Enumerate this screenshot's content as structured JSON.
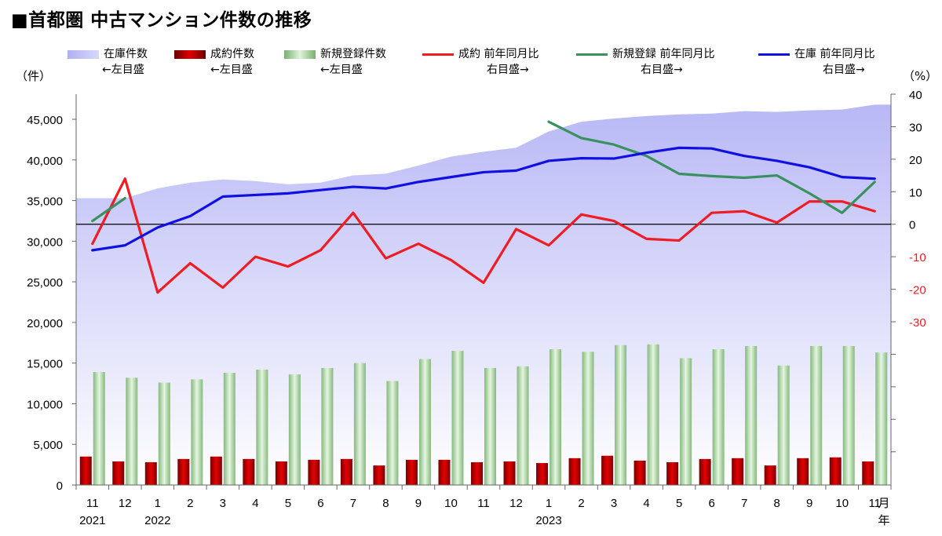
{
  "title": "■首都圏 中古マンション件数の推移",
  "units": {
    "left": "（件）",
    "right": "（%）"
  },
  "legend": [
    {
      "label": "在庫件数",
      "sub": "←左目盛",
      "swatch": "area"
    },
    {
      "label": "成約件数",
      "sub": "←左目盛",
      "swatch": "red-bar"
    },
    {
      "label": "新規登録件数",
      "sub": "←左目盛",
      "swatch": "green-bar"
    },
    {
      "label": "成約 前年同月比",
      "sub": "右目盛→",
      "swatch": "red-line"
    },
    {
      "label": "新規登録 前年同月比",
      "sub": "右目盛→",
      "swatch": "green-line"
    },
    {
      "label": "在庫 前年同月比",
      "sub": "右目盛→",
      "swatch": "blue-line"
    }
  ],
  "colors": {
    "inventory_area": "#c8c8f8",
    "contract_bar": "#cc0000",
    "new_listing_bar": "#a8d8a0",
    "contract_line": "#ee1c24",
    "new_listing_line": "#3a9160",
    "inventory_line": "#1010e0",
    "right_neg_ticks": "#ee1c24"
  },
  "chart_data": {
    "type": "bar",
    "categories": [
      "11",
      "12",
      "1",
      "2",
      "3",
      "4",
      "5",
      "6",
      "7",
      "8",
      "9",
      "10",
      "11",
      "12",
      "1",
      "2",
      "3",
      "4",
      "5",
      "6",
      "7",
      "8",
      "9",
      "10",
      "11"
    ],
    "year_labels": [
      {
        "index": 0,
        "label": "2021"
      },
      {
        "index": 2,
        "label": "2022"
      },
      {
        "index": 14,
        "label": "2023"
      }
    ],
    "month_suffix": "月",
    "year_suffix": "年",
    "y_left": {
      "lim": [
        0,
        45000
      ],
      "ticks": [
        "0",
        "5,000",
        "10,000",
        "15,000",
        "20,000",
        "25,000",
        "30,000",
        "35,000",
        "40,000",
        "45,000"
      ],
      "tick_values": [
        0,
        5000,
        10000,
        15000,
        20000,
        25000,
        30000,
        35000,
        40000,
        45000
      ]
    },
    "y_right": {
      "lim": [
        -30,
        40
      ],
      "ticks": [
        "40",
        "30",
        "20",
        "10",
        "0",
        "-10",
        "-20",
        "-30"
      ],
      "tick_values": [
        40,
        30,
        20,
        10,
        0,
        -10,
        -20,
        -30
      ]
    },
    "series": [
      {
        "name": "在庫件数",
        "kind": "area",
        "axis": "left",
        "values": [
          35300,
          35300,
          36500,
          37200,
          37600,
          37400,
          37000,
          37200,
          38100,
          38300,
          39300,
          40400,
          41000,
          41500,
          43500,
          44700,
          45100,
          45400,
          45600,
          45700,
          46000,
          45900,
          46100,
          46200,
          46800
        ]
      },
      {
        "name": "成約件数",
        "kind": "bar",
        "axis": "left",
        "values": [
          3500,
          2900,
          2800,
          3200,
          3500,
          3200,
          2900,
          3100,
          3200,
          2400,
          3100,
          3100,
          2800,
          2900,
          2700,
          3300,
          3600,
          3000,
          2800,
          3200,
          3300,
          2400,
          3300,
          3400,
          2900
        ]
      },
      {
        "name": "新規登録件数",
        "kind": "bar",
        "axis": "left",
        "values": [
          13900,
          13200,
          12600,
          13000,
          13800,
          14200,
          13600,
          14400,
          15000,
          12800,
          15500,
          16500,
          14400,
          14600,
          16700,
          16400,
          17200,
          17300,
          15600,
          16700,
          17100,
          14700,
          17100,
          17100,
          16300
        ]
      },
      {
        "name": "成約 前年同月比",
        "kind": "line",
        "axis": "right",
        "values": [
          -6,
          14,
          -21,
          -12,
          -19.5,
          -10,
          -13,
          -8,
          3.5,
          -10.5,
          -6,
          -11,
          -18,
          -1.5,
          -6.5,
          3,
          1,
          -4.5,
          -5,
          3.5,
          4,
          0.5,
          7,
          7,
          4
        ]
      },
      {
        "name": "新規登録 前年同月比",
        "kind": "line",
        "axis": "right",
        "values": [
          1,
          8,
          null,
          null,
          null,
          null,
          null,
          null,
          null,
          null,
          null,
          null,
          null,
          null,
          31.5,
          26.5,
          24.5,
          21,
          15.5,
          14.8,
          14.3,
          15,
          9.5,
          3.5,
          13
        ]
      },
      {
        "name": "在庫 前年同月比",
        "kind": "line",
        "axis": "right",
        "values": [
          -8,
          -6.5,
          -1,
          2.5,
          8.5,
          9,
          9.5,
          10.5,
          11.5,
          11,
          13,
          14.5,
          16,
          16.5,
          19.5,
          20.3,
          20.2,
          22,
          23.5,
          23.3,
          21,
          19.5,
          17.5,
          14.5,
          14
        ]
      }
    ],
    "zero_line": 0
  }
}
